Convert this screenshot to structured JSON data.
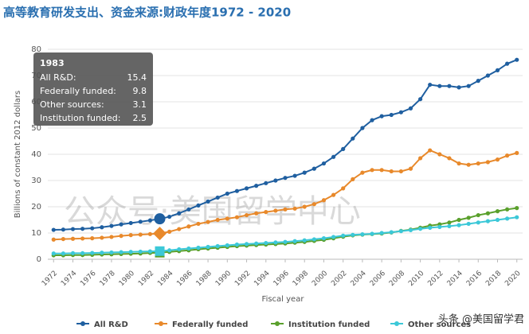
{
  "chart_data": {
    "type": "line",
    "title": "高等教育研发支出、资金来源:财政年度1972 - 2020",
    "y_label": "Billions of constant 2012 dollars",
    "x_label": "Fiscal year",
    "x": [
      1972,
      1973,
      1974,
      1975,
      1976,
      1977,
      1978,
      1979,
      1980,
      1981,
      1982,
      1983,
      1984,
      1985,
      1986,
      1987,
      1988,
      1989,
      1990,
      1991,
      1992,
      1993,
      1994,
      1995,
      1996,
      1997,
      1998,
      1999,
      2000,
      2001,
      2002,
      2003,
      2004,
      2005,
      2006,
      2007,
      2008,
      2009,
      2010,
      2011,
      2012,
      2013,
      2014,
      2015,
      2016,
      2017,
      2018,
      2019,
      2020
    ],
    "series": [
      {
        "name": "All R&D",
        "color": "#1f5fa0",
        "values": [
          11.2,
          11.3,
          11.5,
          11.6,
          11.8,
          12.2,
          12.7,
          13.3,
          13.8,
          14.3,
          14.8,
          15.4,
          16.2,
          17.5,
          19,
          20.5,
          22,
          23.5,
          25,
          26,
          27,
          28,
          29,
          30,
          31,
          31.8,
          33,
          34.5,
          36.5,
          39,
          42,
          46,
          50,
          53,
          54.5,
          55,
          56,
          57.5,
          61,
          66.5,
          66,
          66,
          65.5,
          66,
          68,
          70,
          72,
          74.5,
          76
        ]
      },
      {
        "name": "Federally funded",
        "color": "#e8892b",
        "values": [
          7.5,
          7.7,
          7.8,
          7.9,
          8.0,
          8.2,
          8.5,
          8.9,
          9.2,
          9.4,
          9.6,
          9.8,
          10.5,
          11.5,
          12.5,
          13.5,
          14.2,
          15,
          15.5,
          16,
          16.8,
          17.5,
          18,
          18.5,
          19,
          19.3,
          20,
          21,
          22.5,
          24.5,
          27,
          30.5,
          33,
          34,
          34,
          33.5,
          33.5,
          34.5,
          38.5,
          41.5,
          40,
          38.5,
          36.5,
          36,
          36.5,
          37,
          38,
          39.5,
          40.5
        ]
      },
      {
        "name": "Institution funded",
        "color": "#5aa02c",
        "values": [
          1.5,
          1.5,
          1.6,
          1.6,
          1.7,
          1.8,
          1.9,
          2.0,
          2.1,
          2.2,
          2.4,
          2.5,
          2.8,
          3.1,
          3.4,
          3.8,
          4.1,
          4.4,
          4.7,
          5.0,
          5.2,
          5.4,
          5.6,
          5.8,
          6.0,
          6.3,
          6.6,
          7.0,
          7.4,
          8.0,
          8.6,
          9.1,
          9.4,
          9.6,
          9.8,
          10.2,
          10.8,
          11.3,
          12,
          12.8,
          13.3,
          14,
          15,
          15.8,
          16.8,
          17.5,
          18.3,
          19,
          19.5
        ]
      },
      {
        "name": "Other sources",
        "color": "#3cc8d8",
        "values": [
          2.2,
          2.2,
          2.3,
          2.3,
          2.4,
          2.5,
          2.6,
          2.7,
          2.8,
          2.9,
          3.0,
          3.1,
          3.4,
          3.8,
          4.1,
          4.4,
          4.7,
          5.0,
          5.3,
          5.6,
          5.8,
          6.0,
          6.2,
          6.4,
          6.6,
          6.9,
          7.2,
          7.6,
          8.0,
          8.5,
          9.0,
          9.3,
          9.5,
          9.7,
          10.0,
          10.3,
          10.7,
          11.1,
          11.6,
          12,
          12.3,
          12.6,
          13,
          13.5,
          14,
          14.5,
          15,
          15.5,
          16
        ]
      }
    ],
    "xlim": [
      1971.4,
      2020.6
    ],
    "xticks": [
      1972,
      1974,
      1976,
      1978,
      1980,
      1982,
      1984,
      1986,
      1988,
      1990,
      1992,
      1994,
      1996,
      1998,
      2000,
      2002,
      2004,
      2006,
      2008,
      2010,
      2012,
      2014,
      2016,
      2018,
      2020
    ],
    "ylim": [
      0,
      80
    ],
    "yticks": [
      0,
      10,
      20,
      30,
      40,
      50,
      60,
      70,
      80
    ],
    "grid": true,
    "legend": "bottom",
    "tooltip": {
      "title": 1983,
      "rows": [
        {
          "label": "All R&D:",
          "value": 15.4
        },
        {
          "label": "Federally funded:",
          "value": 9.8
        },
        {
          "label": "Other sources:",
          "value": 3.1
        },
        {
          "label": "Institution funded:",
          "value": 2.5
        }
      ]
    },
    "watermarks": [
      "公众号·美国留学中心",
      "头条 @美国留学君"
    ]
  }
}
